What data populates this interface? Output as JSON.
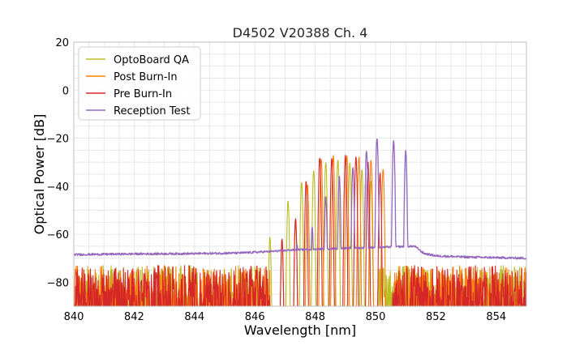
{
  "chart_data": {
    "type": "line",
    "title": "D4502 V20388 Ch. 4",
    "xlabel": "Wavelength [nm]",
    "ylabel": "Optical Power [dB]",
    "xlim": [
      840,
      855
    ],
    "ylim": [
      -90,
      20
    ],
    "xticks": [
      840,
      842,
      844,
      846,
      848,
      850,
      852,
      854
    ],
    "xtick_labels": [
      "840",
      "842",
      "844",
      "846",
      "848",
      "850",
      "852",
      "854"
    ],
    "yticks": [
      -80,
      -60,
      -40,
      -20,
      0,
      20
    ],
    "ytick_labels": [
      "−80",
      "−60",
      "−40",
      "−20",
      "0",
      "20"
    ],
    "grid": true,
    "legend_position": "top-left",
    "series": [
      {
        "name": "OptoBoard QA",
        "color": "#bcbd22",
        "noise_floor": true,
        "peaks": [
          [
            846.5,
            -61
          ],
          [
            847.1,
            -46
          ],
          [
            847.55,
            -38
          ],
          [
            847.95,
            -33
          ],
          [
            848.35,
            -30
          ],
          [
            848.75,
            -29
          ],
          [
            849.15,
            -30
          ],
          [
            849.55,
            -33
          ],
          [
            849.85,
            -38
          ]
        ],
        "cutoff": [
          846.2,
          850.1
        ]
      },
      {
        "name": "Post Burn-In",
        "color": "#ff7f0e",
        "noise_floor": true,
        "peaks": [
          [
            846.9,
            -64
          ],
          [
            847.35,
            -54
          ],
          [
            847.75,
            -40
          ],
          [
            848.2,
            -29
          ],
          [
            848.6,
            -27.5
          ],
          [
            849.05,
            -27
          ],
          [
            849.45,
            -27.5
          ],
          [
            849.85,
            -29
          ],
          [
            850.25,
            -33
          ]
        ],
        "cutoff": [
          846.5,
          850.6
        ]
      },
      {
        "name": "Pre Burn-In",
        "color": "#d62728",
        "noise_floor": true,
        "peaks": [
          [
            846.9,
            -62
          ],
          [
            847.35,
            -53
          ],
          [
            847.7,
            -38
          ],
          [
            848.15,
            -28
          ],
          [
            848.55,
            -28.5
          ],
          [
            849.0,
            -27.5
          ],
          [
            849.35,
            -28
          ],
          [
            849.75,
            -30
          ],
          [
            850.15,
            -35
          ]
        ],
        "cutoff": [
          846.5,
          850.55
        ]
      },
      {
        "name": "Reception Test",
        "color": "#9467bd",
        "noise_floor": false,
        "baseline": [
          [
            840,
            -68.5
          ],
          [
            842,
            -68.2
          ],
          [
            844,
            -68.1
          ],
          [
            845.5,
            -67.8
          ],
          [
            846.5,
            -67.2
          ],
          [
            847.3,
            -66.5
          ],
          [
            851.3,
            -65
          ],
          [
            851.6,
            -68
          ],
          [
            852,
            -69
          ],
          [
            853,
            -69.5
          ],
          [
            855,
            -70
          ]
        ],
        "peaks": [
          [
            846.5,
            -67
          ],
          [
            847.4,
            -64
          ],
          [
            847.9,
            -57
          ],
          [
            848.35,
            -44
          ],
          [
            848.8,
            -36
          ],
          [
            849.25,
            -32
          ],
          [
            849.7,
            -25
          ],
          [
            850.05,
            -20
          ],
          [
            850.6,
            -21
          ],
          [
            851.0,
            -25
          ]
        ],
        "cutoff": [
          846.3,
          851.4
        ]
      }
    ]
  }
}
